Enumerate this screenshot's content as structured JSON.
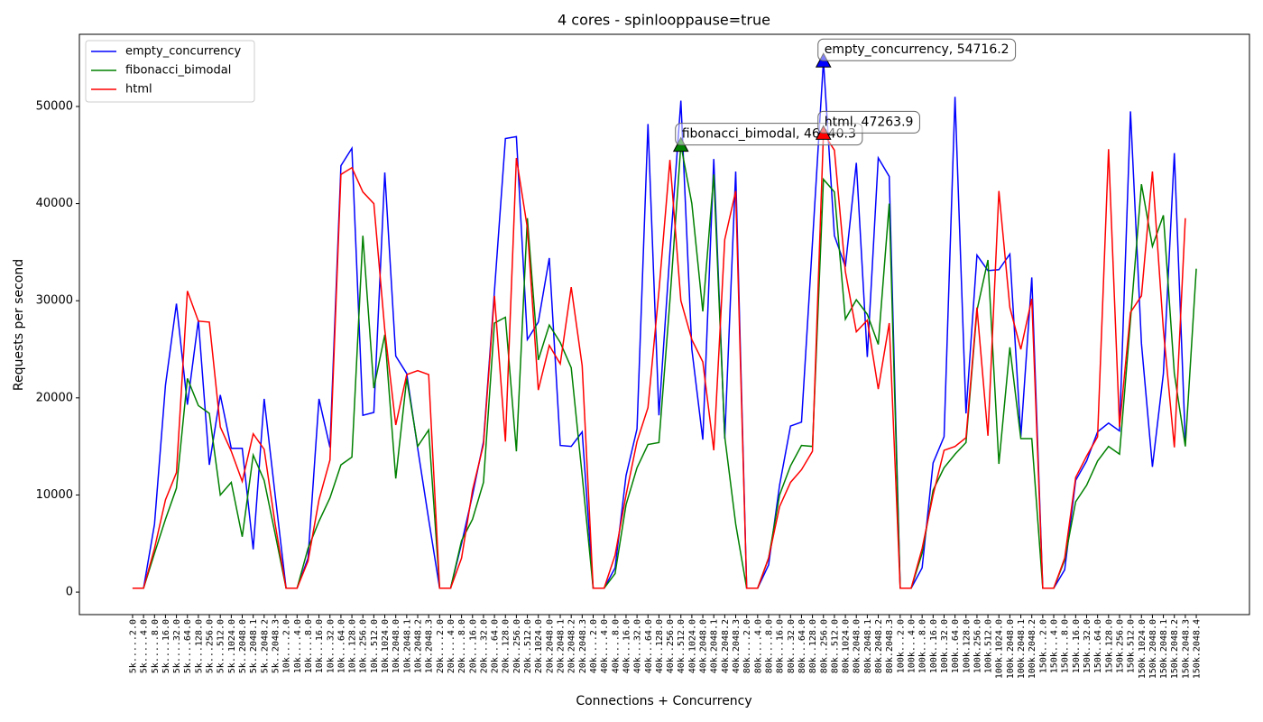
{
  "chart_data": {
    "type": "line",
    "title": "4 cores - spinlooppause=true",
    "xlabel": "Connections + Concurrency",
    "ylabel": "Requests per second",
    "categories": [
      "5k.....2.0",
      "5k.....4.0",
      "5k.....8.0",
      "5k....16.0",
      "5k....32.0",
      "5k....64.0",
      "5k...128.0",
      "5k...256.0",
      "5k...512.0",
      "5k..1024.0",
      "5k..2048.0",
      "5k..2048.1",
      "5k..2048.2",
      "5k..2048.3",
      "10k....2.0",
      "10k....4.0",
      "10k....8.0",
      "10k...16.0",
      "10k...32.0",
      "10k...64.0",
      "10k..128.0",
      "10k..256.0",
      "10k..512.0",
      "10k.1024.0",
      "10k.2048.0",
      "10k.2048.1",
      "10k.2048.2",
      "10k.2048.3",
      "20k....2.0",
      "20k....4.0",
      "20k....8.0",
      "20k...16.0",
      "20k...32.0",
      "20k...64.0",
      "20k..128.0",
      "20k..256.0",
      "20k..512.0",
      "20k.1024.0",
      "20k.2048.0",
      "20k.2048.1",
      "20k.2048.2",
      "20k.2048.3",
      "40k....2.0",
      "40k....4.0",
      "40k....8.0",
      "40k...16.0",
      "40k...32.0",
      "40k...64.0",
      "40k..128.0",
      "40k..256.0",
      "40k..512.0",
      "40k.1024.0",
      "40k.2048.0",
      "40k.2048.1",
      "40k.2048.2",
      "40k.2048.3",
      "80k....2.0",
      "80k....4.0",
      "80k....8.0",
      "80k...16.0",
      "80k...32.0",
      "80k...64.0",
      "80k..128.0",
      "80k..256.0",
      "80k..512.0",
      "80k.1024.0",
      "80k.2048.0",
      "80k.2048.1",
      "80k.2048.2",
      "80k.2048.3",
      "100k...2.0",
      "100k...4.0",
      "100k...8.0",
      "100k..16.0",
      "100k..32.0",
      "100k..64.0",
      "100k.128.0",
      "100k.256.0",
      "100k.512.0",
      "100k.1024.0",
      "100k.2048.0",
      "100k.2048.1",
      "100k.2048.2",
      "150k...2.0",
      "150k...4.0",
      "150k...8.0",
      "150k..16.0",
      "150k..32.0",
      "150k..64.0",
      "150k.128.0",
      "150k.256.0",
      "150k.512.0",
      "150k.1024.0",
      "150k.2048.0",
      "150k.2048.1",
      "150k.2048.2",
      "150k.2048.3",
      "150k.2048.4"
    ],
    "series": [
      {
        "name": "empty_concurrency",
        "color": "#0000ff",
        "values": [
          400,
          400,
          7000,
          21300,
          29700,
          19300,
          28000,
          13100,
          20300,
          14800,
          14800,
          4400,
          19900,
          10000,
          400,
          400,
          3500,
          19900,
          14900,
          43900,
          45700,
          18200,
          18500,
          43200,
          24300,
          22500,
          14800,
          7500,
          400,
          400,
          5000,
          10000,
          15500,
          31000,
          46700,
          46900,
          26000,
          27800,
          34400,
          15100,
          15000,
          16500,
          400,
          400,
          2500,
          12000,
          16800,
          48200,
          18200,
          35000,
          50600,
          25000,
          15700,
          44600,
          15800,
          43300,
          400,
          400,
          2800,
          11000,
          17100,
          17500,
          36000,
          54716.2,
          36700,
          33500,
          44200,
          24200,
          44700,
          42800,
          400,
          400,
          2500,
          13300,
          16000,
          51000,
          18400,
          34700,
          33100,
          33200,
          34800,
          16000,
          32400,
          400,
          400,
          2300,
          11500,
          13500,
          16500,
          17400,
          16600,
          49500,
          25600,
          12900,
          22500,
          45200,
          15500,
          null
        ]
      },
      {
        "name": "fibonacci_bimodal",
        "color": "#008000",
        "values": [
          400,
          400,
          4000,
          7500,
          10700,
          22000,
          19200,
          18400,
          10000,
          11300,
          5700,
          14100,
          11500,
          6000,
          400,
          400,
          4500,
          7300,
          9700,
          13100,
          13900,
          36700,
          21000,
          26500,
          11700,
          22000,
          15000,
          16700,
          400,
          400,
          5300,
          7500,
          11300,
          27700,
          28300,
          14500,
          38500,
          23900,
          27500,
          25700,
          23100,
          12000,
          400,
          400,
          1900,
          9000,
          12800,
          15200,
          15400,
          30000,
          46040.3,
          40000,
          28900,
          43000,
          16000,
          7000,
          400,
          400,
          3500,
          10000,
          13000,
          15100,
          15000,
          42500,
          41200,
          28100,
          30100,
          28600,
          25500,
          40000,
          400,
          400,
          4000,
          10500,
          12800,
          14200,
          15400,
          29000,
          34200,
          13200,
          25200,
          15800,
          15800,
          400,
          400,
          3300,
          9300,
          11000,
          13500,
          15000,
          14200,
          28000,
          42000,
          35600,
          38800,
          22500,
          15000,
          33300
        ]
      },
      {
        "name": "html",
        "color": "#ff0000",
        "values": [
          400,
          400,
          4500,
          9500,
          12300,
          31000,
          27900,
          27800,
          17000,
          14500,
          11400,
          16300,
          14700,
          7000,
          400,
          400,
          3200,
          9500,
          13600,
          43000,
          43700,
          41200,
          40000,
          27000,
          17200,
          22400,
          22800,
          22400,
          400,
          400,
          3500,
          10500,
          15200,
          30500,
          15500,
          44700,
          37500,
          20800,
          25400,
          23500,
          31400,
          23300,
          400,
          400,
          3800,
          10000,
          15500,
          19000,
          31000,
          44500,
          30000,
          26000,
          23700,
          14600,
          36300,
          41300,
          400,
          400,
          3500,
          8800,
          11300,
          12600,
          14500,
          47263.9,
          45500,
          33000,
          26800,
          28000,
          20900,
          27700,
          400,
          400,
          4500,
          10000,
          14600,
          15000,
          15900,
          29300,
          16100,
          41300,
          29300,
          25000,
          30200,
          400,
          400,
          3500,
          11800,
          14000,
          16000,
          45600,
          17000,
          28800,
          30500,
          43300,
          27000,
          14900,
          38500,
          null
        ]
      }
    ],
    "annotations": [
      {
        "text": "empty_concurrency, 54716.2",
        "x": "80k..256.0",
        "y": 54716.2,
        "color": "#0000ff"
      },
      {
        "text": "fibonacci_bimodal, 46040.3",
        "x": "40k..512.0",
        "y": 46040.3,
        "color": "#008000"
      },
      {
        "text": "html, 47263.9",
        "x": "80k..256.0",
        "y": 47263.9,
        "color": "#ff0000"
      }
    ],
    "ylim": [
      -2316,
      57432
    ],
    "yticks": [
      0,
      10000,
      20000,
      30000,
      40000,
      50000
    ],
    "legend": "upper left",
    "grid": false
  }
}
